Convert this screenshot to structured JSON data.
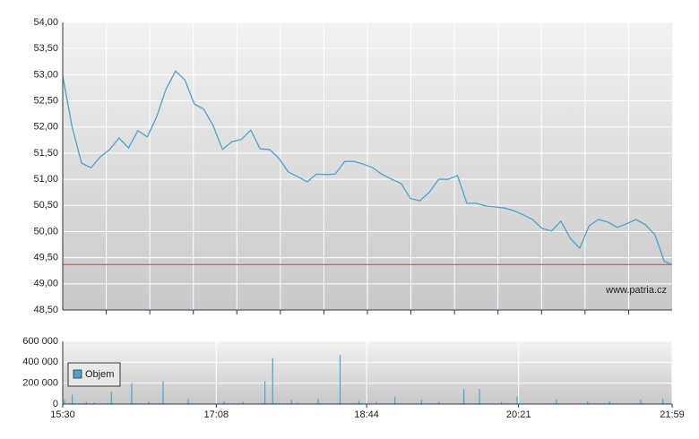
{
  "chart_data": [
    {
      "type": "line",
      "x": [
        "15:30",
        "15:36",
        "15:42",
        "15:48",
        "15:54",
        "16:00",
        "16:06",
        "16:12",
        "16:18",
        "16:24",
        "16:30",
        "16:36",
        "16:42",
        "16:48",
        "16:54",
        "17:00",
        "17:06",
        "17:12",
        "17:18",
        "17:24",
        "17:30",
        "17:36",
        "17:42",
        "17:48",
        "17:54",
        "18:00",
        "18:06",
        "18:12",
        "18:18",
        "18:24",
        "18:30",
        "18:36",
        "18:42",
        "18:48",
        "18:54",
        "19:00",
        "19:06",
        "19:12",
        "19:18",
        "19:24",
        "19:30",
        "19:36",
        "19:42",
        "19:48",
        "19:54",
        "20:00",
        "20:06",
        "20:12",
        "20:18",
        "20:24",
        "20:30",
        "20:36",
        "20:42",
        "20:48",
        "20:54",
        "21:00",
        "21:06",
        "21:12",
        "21:18",
        "21:24",
        "21:30",
        "21:36",
        "21:42",
        "21:48",
        "21:54",
        "21:59"
      ],
      "values": [
        52.97,
        52.0,
        51.31,
        51.22,
        51.43,
        51.57,
        51.79,
        51.6,
        51.93,
        51.81,
        52.2,
        52.73,
        53.07,
        52.9,
        52.44,
        52.34,
        52.03,
        51.57,
        51.72,
        51.76,
        51.94,
        51.58,
        51.57,
        51.4,
        51.14,
        51.05,
        50.95,
        51.1,
        51.09,
        51.1,
        51.34,
        51.34,
        51.29,
        51.22,
        51.09,
        51.0,
        50.92,
        50.63,
        50.59,
        50.75,
        51.0,
        51.0,
        51.07,
        50.54,
        50.54,
        50.49,
        50.47,
        50.45,
        50.4,
        50.32,
        50.23,
        50.06,
        50.01,
        50.2,
        49.87,
        49.68,
        50.11,
        50.23,
        50.18,
        50.08,
        50.15,
        50.23,
        50.13,
        49.94,
        49.43,
        49.37
      ],
      "color": "#4aa3d0",
      "reference": 49.37,
      "reference_color": "#d04040",
      "xlim": [
        "15:30",
        "21:59"
      ],
      "ylim": [
        48.5,
        54
      ],
      "yticks": [
        {
          "value": 48.5,
          "label": "48,50"
        },
        {
          "value": 49,
          "label": "49,00"
        },
        {
          "value": 49.5,
          "label": "49,50"
        },
        {
          "value": 50,
          "label": "50,00"
        },
        {
          "value": 50.5,
          "label": "50,50"
        },
        {
          "value": 51,
          "label": "51,00"
        },
        {
          "value": 51.5,
          "label": "51,50"
        },
        {
          "value": 52,
          "label": "52,00"
        },
        {
          "value": 52.5,
          "label": "52,50"
        },
        {
          "value": 53,
          "label": "53,00"
        },
        {
          "value": 53.5,
          "label": "53,50"
        },
        {
          "value": 54,
          "label": "54,00"
        }
      ],
      "annotation": "www.patria.cz",
      "grid": true
    },
    {
      "type": "bar",
      "x": [
        "15:31",
        "15:36",
        "15:45",
        "15:50",
        "16:01",
        "16:14",
        "16:25",
        "16:34",
        "16:50",
        "17:13",
        "17:25",
        "17:39",
        "17:44",
        "17:56",
        "18:00",
        "18:13",
        "18:27",
        "18:39",
        "18:50",
        "19:02",
        "19:19",
        "19:30",
        "19:46",
        "19:56",
        "20:10",
        "20:20",
        "20:45",
        "21:05",
        "21:19",
        "21:39",
        "21:53"
      ],
      "series": [
        {
          "name": "Objem",
          "color": "#4aa3d0",
          "values": [
            40000,
            90000,
            20000,
            15000,
            120000,
            200000,
            20000,
            220000,
            50000,
            30000,
            20000,
            220000,
            440000,
            40000,
            15000,
            50000,
            470000,
            30000,
            20000,
            70000,
            40000,
            20000,
            145000,
            145000,
            20000,
            75000,
            40000,
            25000,
            30000,
            40000,
            50000
          ]
        }
      ],
      "xlim": [
        "15:30",
        "21:59"
      ],
      "xticks": [
        "15:30",
        "17:08",
        "18:44",
        "20:21",
        "21:59"
      ],
      "ylim": [
        0,
        600000
      ],
      "yticks": [
        0,
        {
          "value": 200000,
          "label": "200 000"
        },
        {
          "value": 400000,
          "label": "400 000"
        },
        {
          "value": 600000,
          "label": "600 000"
        }
      ],
      "grid": true
    }
  ]
}
